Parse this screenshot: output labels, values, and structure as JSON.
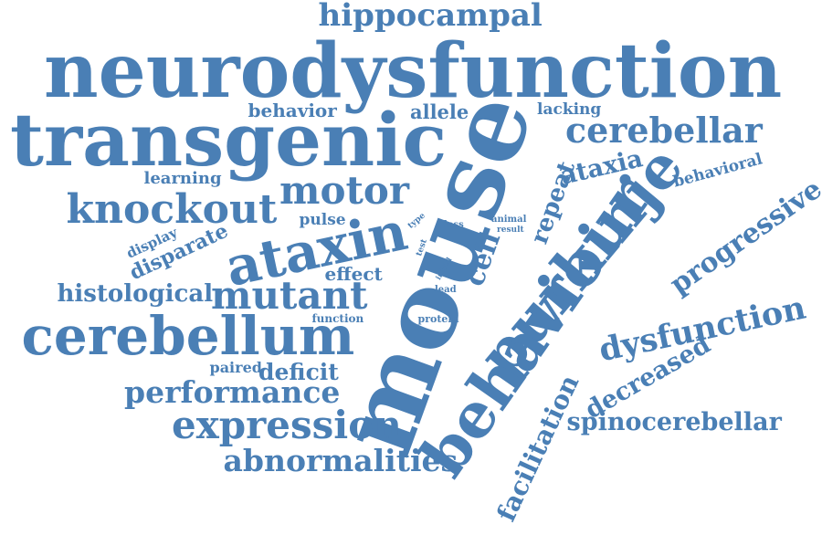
{
  "color": "#4a7fb5",
  "words": [
    {
      "text": "hippocampal"
    },
    {
      "text": "neurodysfunction"
    },
    {
      "text": "transgenic"
    },
    {
      "text": "mouse"
    },
    {
      "text": "behavior"
    },
    {
      "text": "allele"
    },
    {
      "text": "lacking"
    },
    {
      "text": "cerebellar"
    },
    {
      "text": "ataxia"
    },
    {
      "text": "behavioral"
    },
    {
      "text": "repeat"
    },
    {
      "text": "purkinje"
    },
    {
      "text": "learning"
    },
    {
      "text": "motor"
    },
    {
      "text": "knockout"
    },
    {
      "text": "pulse"
    },
    {
      "text": "ataxin"
    },
    {
      "text": "type"
    },
    {
      "text": "loss"
    },
    {
      "text": "animal"
    },
    {
      "text": "result"
    },
    {
      "text": "cell"
    },
    {
      "text": "display"
    },
    {
      "text": "disparate"
    },
    {
      "text": "test"
    },
    {
      "text": "initial"
    },
    {
      "text": "effect"
    },
    {
      "text": "lead"
    },
    {
      "text": "progressive"
    },
    {
      "text": "histological"
    },
    {
      "text": "mutant"
    },
    {
      "text": "behaviour"
    },
    {
      "text": "function"
    },
    {
      "text": "protein"
    },
    {
      "text": "cerebellum"
    },
    {
      "text": "dysfunction"
    },
    {
      "text": "paired"
    },
    {
      "text": "deficit"
    },
    {
      "text": "decreased"
    },
    {
      "text": "performance"
    },
    {
      "text": "facilitation"
    },
    {
      "text": "expression"
    },
    {
      "text": "spinocerebellar"
    },
    {
      "text": "abnormalities"
    }
  ]
}
